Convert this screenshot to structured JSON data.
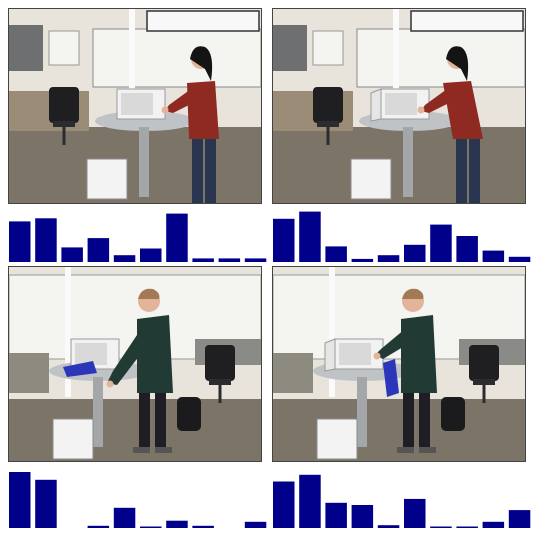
{
  "colors": {
    "bar": "#00008b",
    "baseline": "#000000",
    "wall": "#e8e4dc",
    "floor": "#7d7468",
    "whiteboard": "#f4f4f0",
    "table": "#bfc3c6",
    "microwave": "#f2f2f2",
    "chair": "#1f1f22",
    "sweater_red": "#8e2a22",
    "sweater_green": "#213a33",
    "jeans": "#2a3650",
    "pants_dark": "#1e1e24",
    "skin": "#e2b49a",
    "hair_dark": "#141414",
    "cloth_blue": "#2b36b8"
  },
  "frames": [
    {
      "scene": "woman",
      "pose": "reach"
    },
    {
      "scene": "woman",
      "pose": "lean"
    },
    {
      "scene": "man",
      "pose": "reach",
      "cloth": "on-table"
    },
    {
      "scene": "man",
      "pose": "open",
      "cloth": "in-hand"
    }
  ],
  "chart_data": [
    {
      "type": "bar",
      "values": [
        0.78,
        0.84,
        0.28,
        0.46,
        0.13,
        0.26,
        0.93,
        0.07,
        0.07,
        0.07
      ]
    },
    {
      "type": "bar",
      "values": [
        0.83,
        0.97,
        0.3,
        0.06,
        0.13,
        0.33,
        0.72,
        0.5,
        0.22,
        0.1
      ]
    },
    {
      "type": "bar",
      "values": [
        1.0,
        0.86,
        0.0,
        0.04,
        0.36,
        0.02,
        0.13,
        0.04,
        0.0,
        0.11
      ]
    },
    {
      "type": "bar",
      "values": [
        0.83,
        0.95,
        0.45,
        0.41,
        0.05,
        0.52,
        0.02,
        0.02,
        0.11,
        0.32
      ]
    }
  ]
}
